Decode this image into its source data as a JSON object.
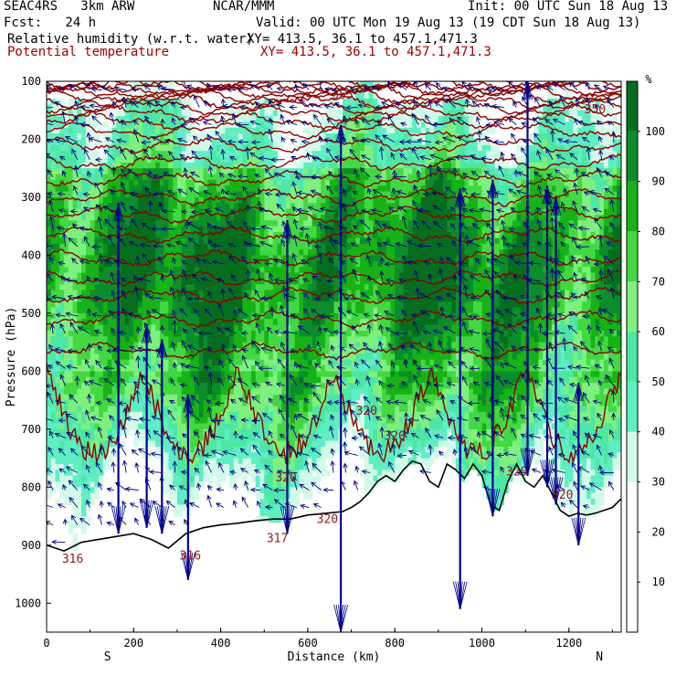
{
  "header": {
    "model": "SEAC4RS   3km ARW",
    "org": "NCAR/MMM",
    "init": "Init: 00 UTC Sun 18 Aug 13",
    "fcst": "Fcst:   24 h",
    "valid": "Valid: 00 UTC Mon 19 Aug 13 (19 CDT Sun 18 Aug 13)",
    "field1": "Relative humidity (w.r.t. water)",
    "xy1": "XY= 413.5, 36.1 to 457.1,471.3",
    "field2": "Potential temperature",
    "xy2": "XY= 413.5, 36.1 to 457.1,471.3"
  },
  "chart_data": {
    "type": "heatmap",
    "xlabel": "Distance (km)",
    "ylabel": "Pressure (hPa)",
    "xlim": [
      0,
      1320
    ],
    "ylim": [
      1050,
      100
    ],
    "x_ticks": [
      0,
      200,
      400,
      600,
      800,
      1000,
      1200
    ],
    "y_ticks": [
      100,
      200,
      300,
      400,
      500,
      600,
      700,
      800,
      900,
      1000
    ],
    "end_labels": {
      "left": "S",
      "right": "N"
    },
    "colorbar": {
      "unit": "%",
      "ticks": [
        10,
        20,
        30,
        40,
        50,
        60,
        70,
        80,
        90,
        100
      ],
      "levels": [
        {
          "from": 0,
          "to": 30,
          "color": "#ffffff"
        },
        {
          "from": 30,
          "to": 40,
          "color": "#d2fae8"
        },
        {
          "from": 40,
          "to": 50,
          "color": "#5eeec2"
        },
        {
          "from": 50,
          "to": 60,
          "color": "#4ee6a4"
        },
        {
          "from": 60,
          "to": 70,
          "color": "#7ef07e"
        },
        {
          "from": 70,
          "to": 80,
          "color": "#43d843"
        },
        {
          "from": 80,
          "to": 90,
          "color": "#17b217"
        },
        {
          "from": 90,
          "to": 100,
          "color": "#0a8d2a"
        },
        {
          "from": 100,
          "to": 110,
          "color": "#046e1e"
        }
      ]
    },
    "theta_labels": [
      {
        "text": "355",
        "x": 680,
        "p": 130
      },
      {
        "text": "350",
        "x": 1260,
        "p": 155
      },
      {
        "text": "320",
        "x": 735,
        "p": 675
      },
      {
        "text": "320",
        "x": 800,
        "p": 718
      },
      {
        "text": "320",
        "x": 550,
        "p": 790
      },
      {
        "text": "320",
        "x": 1080,
        "p": 780
      },
      {
        "text": "320",
        "x": 1185,
        "p": 820
      },
      {
        "text": "320",
        "x": 645,
        "p": 862
      },
      {
        "text": "317",
        "x": 530,
        "p": 895
      },
      {
        "text": "316",
        "x": 330,
        "p": 925
      },
      {
        "text": "316",
        "x": 60,
        "p": 930
      }
    ],
    "terrain_pressure": [
      {
        "x": 0,
        "p": 900
      },
      {
        "x": 40,
        "p": 910
      },
      {
        "x": 80,
        "p": 895
      },
      {
        "x": 120,
        "p": 890
      },
      {
        "x": 160,
        "p": 885
      },
      {
        "x": 200,
        "p": 880
      },
      {
        "x": 240,
        "p": 890
      },
      {
        "x": 280,
        "p": 905
      },
      {
        "x": 320,
        "p": 880
      },
      {
        "x": 360,
        "p": 870
      },
      {
        "x": 400,
        "p": 865
      },
      {
        "x": 440,
        "p": 862
      },
      {
        "x": 480,
        "p": 858
      },
      {
        "x": 520,
        "p": 855
      },
      {
        "x": 560,
        "p": 855
      },
      {
        "x": 600,
        "p": 848
      },
      {
        "x": 640,
        "p": 845
      },
      {
        "x": 680,
        "p": 842
      },
      {
        "x": 700,
        "p": 835
      },
      {
        "x": 720,
        "p": 825
      },
      {
        "x": 740,
        "p": 810
      },
      {
        "x": 760,
        "p": 790
      },
      {
        "x": 780,
        "p": 780
      },
      {
        "x": 800,
        "p": 790
      },
      {
        "x": 820,
        "p": 770
      },
      {
        "x": 840,
        "p": 755
      },
      {
        "x": 860,
        "p": 760
      },
      {
        "x": 880,
        "p": 790
      },
      {
        "x": 900,
        "p": 800
      },
      {
        "x": 920,
        "p": 760
      },
      {
        "x": 940,
        "p": 770
      },
      {
        "x": 960,
        "p": 785
      },
      {
        "x": 980,
        "p": 760
      },
      {
        "x": 1000,
        "p": 780
      },
      {
        "x": 1020,
        "p": 830
      },
      {
        "x": 1040,
        "p": 840
      },
      {
        "x": 1060,
        "p": 790
      },
      {
        "x": 1080,
        "p": 760
      },
      {
        "x": 1100,
        "p": 790
      },
      {
        "x": 1120,
        "p": 800
      },
      {
        "x": 1140,
        "p": 780
      },
      {
        "x": 1160,
        "p": 810
      },
      {
        "x": 1180,
        "p": 840
      },
      {
        "x": 1200,
        "p": 850
      },
      {
        "x": 1220,
        "p": 845
      },
      {
        "x": 1240,
        "p": 848
      },
      {
        "x": 1260,
        "p": 845
      },
      {
        "x": 1280,
        "p": 840
      },
      {
        "x": 1300,
        "p": 835
      },
      {
        "x": 1320,
        "p": 820
      }
    ],
    "updraft_columns": [
      {
        "x": 165,
        "p_top": 310,
        "p_bot": 880
      },
      {
        "x": 230,
        "p_top": 520,
        "p_bot": 870
      },
      {
        "x": 265,
        "p_top": 545,
        "p_bot": 880
      },
      {
        "x": 325,
        "p_top": 640,
        "p_bot": 960
      },
      {
        "x": 553,
        "p_top": 340,
        "p_bot": 880
      },
      {
        "x": 676,
        "p_top": 175,
        "p_bot": 1050
      },
      {
        "x": 950,
        "p_top": 285,
        "p_bot": 1010
      },
      {
        "x": 1025,
        "p_top": 270,
        "p_bot": 850
      },
      {
        "x": 1105,
        "p_top": 100,
        "p_bot": 780
      },
      {
        "x": 1150,
        "p_top": 280,
        "p_bot": 800
      },
      {
        "x": 1170,
        "p_top": 300,
        "p_bot": 830
      },
      {
        "x": 1222,
        "p_top": 620,
        "p_bot": 900
      }
    ]
  }
}
